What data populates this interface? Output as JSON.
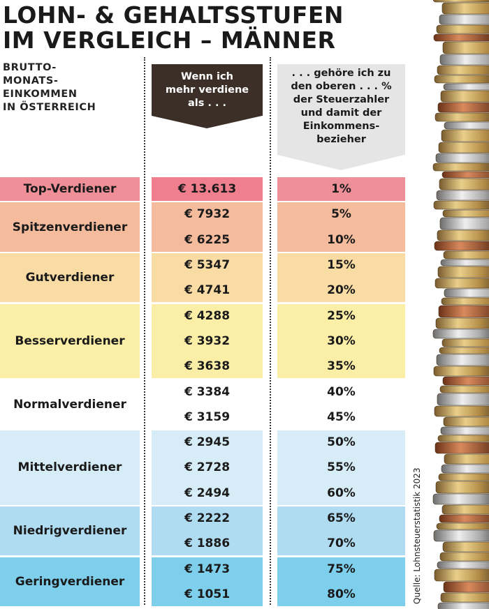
{
  "title_lines": [
    "LOHN- & GEHALTSSTUFEN",
    "IM VERGLEICH – MÄNNER"
  ],
  "subtitle_lines": [
    "BRUTTO-",
    "MONATS-",
    "EINKOMMEN",
    "IN ÖSTERREICH"
  ],
  "header_mid_lines": [
    "Wenn ich",
    "mehr verdiene",
    "als . . ."
  ],
  "header_right_lines": [
    ". . . gehöre ich zu",
    "den oberen . . . %",
    "der Steuerzahler",
    "und damit der",
    "Einkommens-",
    "bezieher"
  ],
  "source": "Quelle: Lohnsteuerstatistik 2023",
  "chart_data": {
    "type": "table",
    "columns": [
      "Wenn ich mehr verdiene als . . .",
      ". . . gehöre ich zu den oberen . . . % der Steuerzahler und damit der Einkommensbezieher"
    ],
    "groups": [
      {
        "label": "Top-Verdiener",
        "rows": [
          {
            "amount": "€ 13.613",
            "percent": "1%"
          }
        ]
      },
      {
        "label": "Spitzenverdiener",
        "rows": [
          {
            "amount": "€ 7932",
            "percent": "5%"
          },
          {
            "amount": "€ 6225",
            "percent": "10%"
          }
        ]
      },
      {
        "label": "Gutverdiener",
        "rows": [
          {
            "amount": "€ 5347",
            "percent": "15%"
          },
          {
            "amount": "€ 4741",
            "percent": "20%"
          }
        ]
      },
      {
        "label": "Besserverdiener",
        "rows": [
          {
            "amount": "€ 4288",
            "percent": "25%"
          },
          {
            "amount": "€ 3932",
            "percent": "30%"
          },
          {
            "amount": "€ 3638",
            "percent": "35%"
          }
        ]
      },
      {
        "label": "Normalverdiener",
        "rows": [
          {
            "amount": "€ 3384",
            "percent": "40%"
          },
          {
            "amount": "€ 3159",
            "percent": "45%"
          }
        ]
      },
      {
        "label": "Mittelverdiener",
        "rows": [
          {
            "amount": "€ 2945",
            "percent": "50%"
          },
          {
            "amount": "€ 2728",
            "percent": "55%"
          },
          {
            "amount": "€ 2494",
            "percent": "60%"
          }
        ]
      },
      {
        "label": "Niedrigverdiener",
        "rows": [
          {
            "amount": "€ 2222",
            "percent": "65%"
          },
          {
            "amount": "€ 1886",
            "percent": "70%"
          }
        ]
      },
      {
        "label": "Geringverdiener",
        "rows": [
          {
            "amount": "€ 1473",
            "percent": "75%"
          },
          {
            "amount": "€ 1051",
            "percent": "80%"
          }
        ]
      }
    ],
    "group_colors": [
      "#ef8f98",
      "#f4bb9d",
      "#f9dba4",
      "#fbefa8",
      "#ffffff",
      "#d6ecf7",
      "#b0dcf2",
      "#7ecfeb"
    ],
    "first_row_amount_color": "#ef7f8d"
  },
  "colors": {
    "header_mid_bg": "#3b2f27",
    "header_right_bg": "#e5e5e5"
  }
}
